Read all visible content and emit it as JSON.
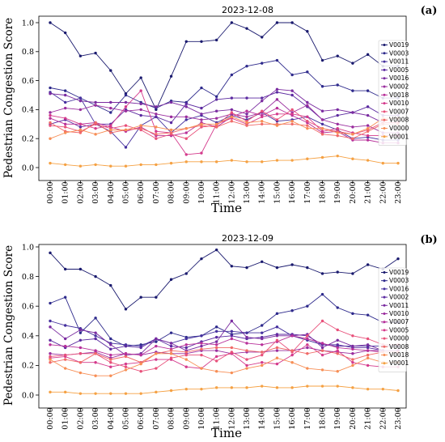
{
  "chart_data": [
    {
      "type": "line",
      "panel_label": "(a)",
      "title": "2023-12-08",
      "xlabel": "Time",
      "ylabel": "Pedestrian Congestion Score",
      "x": [
        "00:00",
        "01:00",
        "02:00",
        "03:00",
        "04:00",
        "05:00",
        "06:00",
        "07:00",
        "08:00",
        "09:00",
        "10:00",
        "11:00",
        "12:00",
        "13:00",
        "14:00",
        "15:00",
        "16:00",
        "17:00",
        "18:00",
        "19:00",
        "20:00",
        "21:00",
        "22:00",
        "23:00"
      ],
      "ylim": [
        0,
        1.0
      ],
      "yticks": [
        "0.0",
        "0.2",
        "0.4",
        "0.6",
        "0.8",
        "1.0"
      ],
      "legend_position": "right",
      "series": [
        {
          "name": "V0019",
          "color": "#1a1a6e",
          "values": [
            1.0,
            0.93,
            0.77,
            0.79,
            0.67,
            0.51,
            0.62,
            0.4,
            0.63,
            0.87,
            0.87,
            0.88,
            1.0,
            0.96,
            0.9,
            1.0,
            1.0,
            0.94,
            0.74,
            0.77,
            0.72,
            0.78,
            0.7,
            0.7
          ]
        },
        {
          "name": "V0003",
          "color": "#2e2a8c",
          "values": [
            0.55,
            0.53,
            0.48,
            0.43,
            0.38,
            0.5,
            0.45,
            0.41,
            0.46,
            0.45,
            0.55,
            0.49,
            0.64,
            0.7,
            0.72,
            0.74,
            0.64,
            0.66,
            0.56,
            0.57,
            0.53,
            0.53,
            0.48,
            0.48
          ]
        },
        {
          "name": "V0011",
          "color": "#45309e",
          "values": [
            0.52,
            0.45,
            0.48,
            0.3,
            0.25,
            0.14,
            0.29,
            0.35,
            0.24,
            0.33,
            0.36,
            0.31,
            0.36,
            0.33,
            0.38,
            0.32,
            0.33,
            0.35,
            0.3,
            0.26,
            0.2,
            0.21,
            0.19,
            0.19
          ]
        },
        {
          "name": "V0005",
          "color": "#5b2aa0",
          "values": [
            0.3,
            0.33,
            0.28,
            0.3,
            0.3,
            0.4,
            0.36,
            0.35,
            0.31,
            0.44,
            0.41,
            0.47,
            0.48,
            0.48,
            0.48,
            0.52,
            0.5,
            0.42,
            0.33,
            0.36,
            0.38,
            0.42,
            0.36,
            0.36
          ]
        },
        {
          "name": "V0016",
          "color": "#7a2ba0",
          "values": [
            0.51,
            0.5,
            0.46,
            0.45,
            0.45,
            0.45,
            0.44,
            0.42,
            0.45,
            0.42,
            0.37,
            0.39,
            0.4,
            0.37,
            0.46,
            0.54,
            0.53,
            0.45,
            0.39,
            0.4,
            0.38,
            0.36,
            0.31,
            0.31
          ]
        },
        {
          "name": "V0002",
          "color": "#9a2d9e",
          "values": [
            0.38,
            0.41,
            0.4,
            0.43,
            0.41,
            0.39,
            0.4,
            0.37,
            0.35,
            0.35,
            0.33,
            0.34,
            0.37,
            0.35,
            0.38,
            0.47,
            0.38,
            0.43,
            0.33,
            0.3,
            0.28,
            0.29,
            0.24,
            0.24
          ]
        },
        {
          "name": "V0018",
          "color": "#b8309a",
          "values": [
            0.34,
            0.3,
            0.3,
            0.31,
            0.28,
            0.25,
            0.28,
            0.22,
            0.22,
            0.24,
            0.31,
            0.28,
            0.35,
            0.39,
            0.36,
            0.41,
            0.36,
            0.31,
            0.24,
            0.25,
            0.19,
            0.19,
            0.17,
            0.17
          ]
        },
        {
          "name": "V0010",
          "color": "#d43a8c",
          "values": [
            0.36,
            0.34,
            0.3,
            0.27,
            0.29,
            0.42,
            0.53,
            0.25,
            0.24,
            0.09,
            0.1,
            0.3,
            0.34,
            0.3,
            0.35,
            0.37,
            0.37,
            0.35,
            0.25,
            0.27,
            0.24,
            0.22,
            0.22,
            0.22
          ]
        },
        {
          "name": "V0007",
          "color": "#e8507a",
          "values": [
            0.29,
            0.28,
            0.25,
            0.3,
            0.27,
            0.29,
            0.26,
            0.2,
            0.23,
            0.2,
            0.28,
            0.29,
            0.38,
            0.32,
            0.39,
            0.33,
            0.4,
            0.32,
            0.27,
            0.25,
            0.23,
            0.26,
            0.31,
            0.31
          ]
        },
        {
          "name": "V0008",
          "color": "#f06a68",
          "values": [
            0.31,
            0.25,
            0.24,
            0.31,
            0.24,
            0.26,
            0.27,
            0.23,
            0.24,
            0.27,
            0.29,
            0.28,
            0.32,
            0.29,
            0.3,
            0.3,
            0.3,
            0.29,
            0.23,
            0.22,
            0.2,
            0.25,
            0.3,
            0.3
          ]
        },
        {
          "name": "V0000",
          "color": "#f78e55",
          "values": [
            0.2,
            0.24,
            0.26,
            0.23,
            0.26,
            0.26,
            0.29,
            0.28,
            0.26,
            0.27,
            0.3,
            0.3,
            0.35,
            0.31,
            0.32,
            0.29,
            0.32,
            0.27,
            0.27,
            0.24,
            0.23,
            0.27,
            0.34,
            0.34
          ]
        },
        {
          "name": "V0001",
          "color": "#f5a143",
          "values": [
            0.03,
            0.02,
            0.01,
            0.02,
            0.01,
            0.01,
            0.02,
            0.02,
            0.03,
            0.04,
            0.04,
            0.04,
            0.05,
            0.04,
            0.04,
            0.05,
            0.05,
            0.06,
            0.07,
            0.08,
            0.06,
            0.05,
            0.03,
            0.03
          ]
        }
      ]
    },
    {
      "type": "line",
      "panel_label": "(b)",
      "title": "2023-12-09",
      "xlabel": "Time",
      "ylabel": "Pedestrian Congestion Score",
      "x": [
        "00:00",
        "01:00",
        "02:00",
        "03:00",
        "04:00",
        "05:00",
        "06:00",
        "07:00",
        "08:00",
        "09:00",
        "10:00",
        "11:00",
        "12:00",
        "13:00",
        "14:00",
        "15:00",
        "16:00",
        "17:00",
        "18:00",
        "19:00",
        "20:00",
        "21:00",
        "22:00",
        "23:00"
      ],
      "ylim": [
        0,
        1.0
      ],
      "yticks": [
        "0.0",
        "0.2",
        "0.4",
        "0.6",
        "0.8",
        "1.0"
      ],
      "legend_position": "right",
      "series": [
        {
          "name": "V0019",
          "color": "#1a1a6e",
          "values": [
            0.96,
            0.85,
            0.85,
            0.8,
            0.74,
            0.58,
            0.66,
            0.66,
            0.78,
            0.82,
            0.92,
            0.98,
            0.87,
            0.86,
            0.9,
            0.86,
            0.88,
            0.86,
            0.82,
            0.83,
            0.82,
            0.88,
            0.85,
            0.92
          ]
        },
        {
          "name": "V0003",
          "color": "#2e2a8c",
          "values": [
            0.62,
            0.66,
            0.42,
            0.52,
            0.38,
            0.33,
            0.34,
            0.36,
            0.42,
            0.39,
            0.4,
            0.46,
            0.41,
            0.42,
            0.47,
            0.55,
            0.57,
            0.6,
            0.68,
            0.59,
            0.55,
            0.54,
            0.49,
            0.49
          ]
        },
        {
          "name": "V0016",
          "color": "#45309e",
          "values": [
            0.5,
            0.47,
            0.45,
            0.4,
            0.35,
            0.34,
            0.33,
            0.38,
            0.35,
            0.38,
            0.4,
            0.43,
            0.43,
            0.42,
            0.42,
            0.46,
            0.4,
            0.37,
            0.34,
            0.33,
            0.33,
            0.33,
            0.33,
            0.33
          ]
        },
        {
          "name": "V0002",
          "color": "#5b2aa0",
          "values": [
            0.37,
            0.32,
            0.37,
            0.38,
            0.31,
            0.33,
            0.32,
            0.38,
            0.33,
            0.32,
            0.36,
            0.39,
            0.4,
            0.38,
            0.39,
            0.41,
            0.41,
            0.4,
            0.34,
            0.34,
            0.32,
            0.32,
            0.3,
            0.3
          ]
        },
        {
          "name": "V0011",
          "color": "#7a2ba0",
          "values": [
            0.46,
            0.38,
            0.44,
            0.42,
            0.34,
            0.27,
            0.28,
            0.38,
            0.35,
            0.3,
            0.33,
            0.36,
            0.5,
            0.39,
            0.38,
            0.4,
            0.4,
            0.41,
            0.32,
            0.37,
            0.33,
            0.34,
            0.3,
            0.3
          ]
        },
        {
          "name": "V0010",
          "color": "#9a2d9e",
          "values": [
            0.28,
            0.27,
            0.28,
            0.29,
            0.25,
            0.28,
            0.27,
            0.29,
            0.28,
            0.28,
            0.3,
            0.3,
            0.28,
            0.29,
            0.29,
            0.3,
            0.3,
            0.32,
            0.3,
            0.29,
            0.28,
            0.3,
            0.3,
            0.3
          ]
        },
        {
          "name": "V0007",
          "color": "#b8309a",
          "values": [
            0.34,
            0.33,
            0.32,
            0.3,
            0.27,
            0.28,
            0.27,
            0.33,
            0.31,
            0.34,
            0.35,
            0.34,
            0.38,
            0.35,
            0.34,
            0.36,
            0.4,
            0.38,
            0.35,
            0.32,
            0.31,
            0.3,
            0.29,
            0.29
          ]
        },
        {
          "name": "V0005",
          "color": "#d43a8c",
          "values": [
            0.25,
            0.26,
            0.22,
            0.22,
            0.19,
            0.21,
            0.22,
            0.24,
            0.24,
            0.19,
            0.18,
            0.26,
            0.28,
            0.2,
            0.22,
            0.21,
            0.27,
            0.34,
            0.27,
            0.3,
            0.22,
            0.2,
            0.19,
            0.19
          ]
        },
        {
          "name": "V0000",
          "color": "#e8507a",
          "values": [
            0.26,
            0.27,
            0.28,
            0.28,
            0.22,
            0.19,
            0.16,
            0.18,
            0.25,
            0.27,
            0.27,
            0.23,
            0.29,
            0.24,
            0.27,
            0.37,
            0.29,
            0.4,
            0.5,
            0.44,
            0.4,
            0.38,
            0.34,
            0.34
          ]
        },
        {
          "name": "V0008",
          "color": "#f06a68",
          "values": [
            0.22,
            0.24,
            0.22,
            0.28,
            0.24,
            0.26,
            0.22,
            0.28,
            0.3,
            0.29,
            0.31,
            0.32,
            0.32,
            0.3,
            0.29,
            0.32,
            0.3,
            0.28,
            0.3,
            0.28,
            0.24,
            0.27,
            0.29,
            0.29
          ]
        },
        {
          "name": "V0018",
          "color": "#f78e55",
          "values": [
            0.24,
            0.18,
            0.15,
            0.13,
            0.13,
            0.17,
            0.21,
            0.28,
            0.28,
            0.24,
            0.18,
            0.16,
            0.15,
            0.18,
            0.2,
            0.25,
            0.22,
            0.18,
            0.17,
            0.16,
            0.2,
            0.25,
            0.22,
            0.22
          ]
        },
        {
          "name": "V0001",
          "color": "#f5a143",
          "values": [
            0.02,
            0.02,
            0.01,
            0.01,
            0.01,
            0.01,
            0.01,
            0.02,
            0.03,
            0.04,
            0.04,
            0.05,
            0.05,
            0.05,
            0.06,
            0.05,
            0.05,
            0.06,
            0.06,
            0.06,
            0.05,
            0.04,
            0.04,
            0.03
          ]
        }
      ]
    }
  ]
}
